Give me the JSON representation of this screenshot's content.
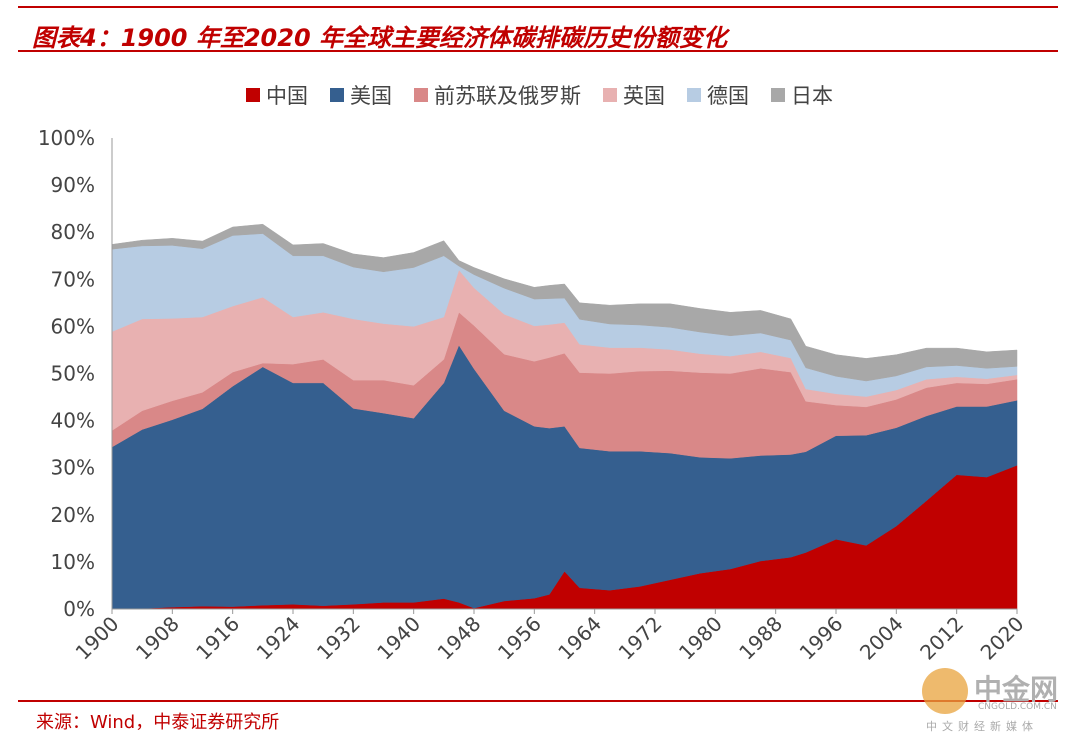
{
  "header": {
    "title": "图表4：1900 年至2020 年全球主要经济体碳排碳历史份额变化"
  },
  "footer": {
    "source": "来源：Wind，中泰证券研究所"
  },
  "watermark": {
    "name": "中金网",
    "url": "CNGOLD.COM.CN",
    "sub": "中文财经新媒体"
  },
  "chart_data": {
    "type": "area",
    "stacked": true,
    "title": "",
    "xlabel": "",
    "ylabel": "",
    "ylim": [
      0,
      100
    ],
    "xlim": [
      1900,
      2020
    ],
    "y_unit": "%",
    "legend_position": "top",
    "grid": false,
    "x_ticks": [
      1900,
      1908,
      1916,
      1924,
      1932,
      1940,
      1948,
      1956,
      1964,
      1972,
      1980,
      1988,
      1996,
      2004,
      2012,
      2020
    ],
    "y_ticks": [
      "0%",
      "10%",
      "20%",
      "30%",
      "40%",
      "50%",
      "60%",
      "70%",
      "80%",
      "90%",
      "100%"
    ],
    "x": [
      1900,
      1904,
      1908,
      1912,
      1916,
      1920,
      1924,
      1928,
      1932,
      1936,
      1940,
      1944,
      1946,
      1948,
      1952,
      1956,
      1958,
      1960,
      1962,
      1966,
      1970,
      1974,
      1978,
      1982,
      1986,
      1990,
      1992,
      1996,
      2000,
      2004,
      2008,
      2012,
      2016,
      2020
    ],
    "series": [
      {
        "name": "中国",
        "color": "#c00000",
        "values": [
          0.0,
          0.1,
          0.4,
          0.6,
          0.5,
          0.8,
          1.0,
          0.7,
          1.0,
          1.4,
          1.4,
          2.2,
          1.4,
          0.2,
          1.7,
          2.3,
          3.1,
          8.0,
          4.5,
          4.0,
          4.8,
          6.2,
          7.6,
          8.5,
          10.2,
          11.0,
          12.0,
          14.8,
          13.5,
          17.6,
          23.0,
          28.5,
          28.0,
          30.5
        ]
      },
      {
        "name": "美国",
        "color": "#355f8f",
        "values": [
          34.4,
          38.0,
          39.8,
          41.9,
          46.8,
          50.6,
          47.0,
          47.3,
          41.6,
          40.2,
          39.1,
          45.8,
          54.6,
          50.8,
          40.4,
          36.5,
          35.3,
          30.8,
          29.7,
          29.5,
          28.7,
          26.9,
          24.6,
          23.5,
          22.4,
          21.8,
          21.4,
          22.0,
          23.4,
          20.9,
          18.0,
          14.5,
          15.0,
          13.8
        ]
      },
      {
        "name": "前苏联及俄罗斯",
        "color": "#d98888",
        "values": [
          3.5,
          4.0,
          4.0,
          3.5,
          3.0,
          0.8,
          4.0,
          5.0,
          6.0,
          7.0,
          7.0,
          5.0,
          7.0,
          9.2,
          12.0,
          13.8,
          15.0,
          15.5,
          16.0,
          16.5,
          17.0,
          17.5,
          18.0,
          18.0,
          18.5,
          17.5,
          10.7,
          6.5,
          6.0,
          6.0,
          6.0,
          5.0,
          4.8,
          4.5
        ]
      },
      {
        "name": "英国",
        "color": "#e8b1b1",
        "values": [
          21.0,
          19.5,
          17.5,
          16.0,
          14.0,
          14.0,
          10.0,
          10.0,
          13.0,
          12.0,
          12.5,
          9.0,
          9.0,
          8.0,
          8.5,
          7.5,
          7.0,
          6.5,
          6.0,
          5.5,
          5.0,
          4.5,
          4.0,
          3.7,
          3.5,
          3.0,
          2.6,
          2.4,
          2.2,
          2.0,
          1.8,
          1.3,
          1.1,
          0.9
        ]
      },
      {
        "name": "德国",
        "color": "#b7cce3",
        "values": [
          17.5,
          15.5,
          15.5,
          14.5,
          15.0,
          13.5,
          13.0,
          12.0,
          11.0,
          11.0,
          12.5,
          13.0,
          0.8,
          2.8,
          5.5,
          5.7,
          5.5,
          5.2,
          5.3,
          5.0,
          4.8,
          4.7,
          4.6,
          4.3,
          4.0,
          3.8,
          4.5,
          3.7,
          3.3,
          3.0,
          2.6,
          2.4,
          2.2,
          1.8
        ]
      },
      {
        "name": "日本",
        "color": "#a8a8a8",
        "values": [
          1.0,
          1.2,
          1.5,
          1.6,
          1.8,
          2.0,
          2.3,
          2.6,
          2.8,
          3.0,
          3.2,
          3.2,
          1.2,
          1.5,
          2.0,
          2.5,
          2.8,
          3.0,
          3.5,
          4.0,
          4.5,
          5.0,
          5.0,
          5.0,
          4.8,
          4.5,
          4.6,
          4.6,
          4.8,
          4.5,
          4.0,
          3.7,
          3.5,
          3.5
        ]
      }
    ]
  }
}
